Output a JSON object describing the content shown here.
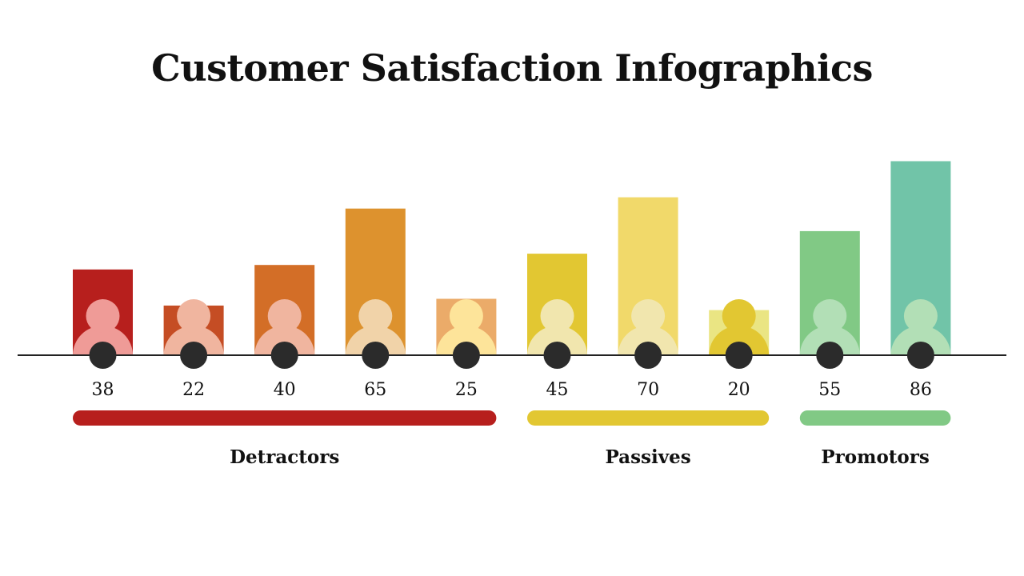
{
  "title": "Customer Satisfaction Infographics",
  "chart_data": {
    "type": "bar",
    "title": "Customer Satisfaction Infographics",
    "xlabel": "",
    "ylabel": "",
    "ylim": [
      0,
      90
    ],
    "grid": false,
    "values": [
      38,
      22,
      40,
      65,
      25,
      45,
      70,
      20,
      55,
      86
    ],
    "bar_colors": [
      "#B71F1D",
      "#C54D24",
      "#D36E27",
      "#DD922E",
      "#EBAB69",
      "#E2C732",
      "#F1D96A",
      "#EAE583",
      "#81C985",
      "#71C4A8"
    ],
    "icon_head_colors": [
      "#EF9B97",
      "#F0B59F",
      "#F0B59F",
      "#F1D3A9",
      "#FDE49A",
      "#F1E6AE",
      "#F1E6AE",
      "#E2C732",
      "#B2DFB6",
      "#B2DFB6"
    ],
    "icon_body_colors": [
      "#EF9B97",
      "#F0B59F",
      "#F0B59F",
      "#F1D3A9",
      "#FDE49A",
      "#F1E6AE",
      "#F1E6AE",
      "#E2C732",
      "#B2DFB6",
      "#B2DFB6"
    ],
    "groups": [
      {
        "name": "Detractors",
        "start": 0,
        "end": 4,
        "color": "#B71F1D"
      },
      {
        "name": "Passives",
        "start": 5,
        "end": 7,
        "color": "#E2C732"
      },
      {
        "name": "Promotors",
        "start": 8,
        "end": 9,
        "color": "#81C985"
      }
    ],
    "baseline_color": "#222222",
    "marker_color": "#2B2B2B"
  }
}
